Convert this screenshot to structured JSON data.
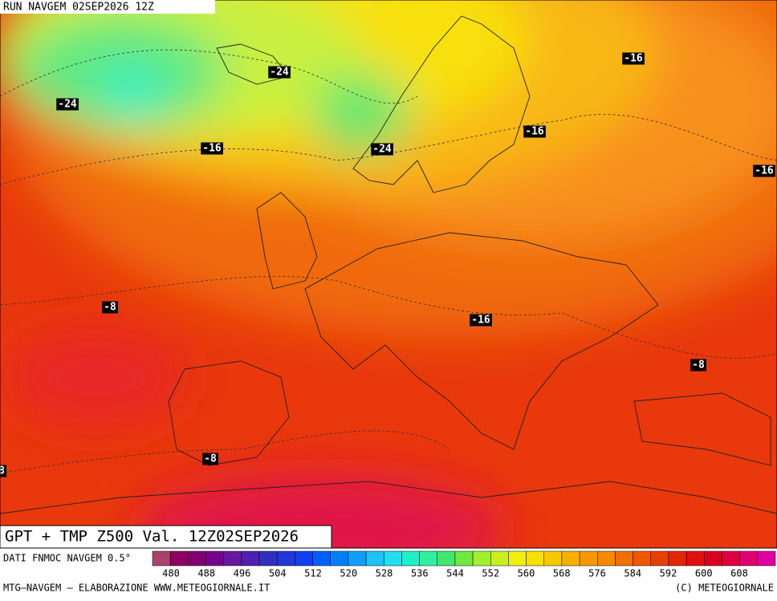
{
  "header": {
    "run": "RUN NAVGEM 02SEP2026 12Z"
  },
  "map": {
    "title": "GPT + TMP Z500 Val. 12Z02SEP2026",
    "contour_labels": [
      "-24",
      "-24",
      "-24",
      "-16",
      "-16",
      "-16",
      "-16",
      "-16",
      "-8",
      "-8",
      "-8",
      "8"
    ]
  },
  "legend": {
    "source": "DATI FNMOC NAVGEM 0.5°",
    "labels": [
      480,
      488,
      496,
      504,
      512,
      520,
      528,
      536,
      544,
      552,
      560,
      568,
      576,
      584,
      592,
      600,
      608
    ],
    "colors": [
      "#a8426e",
      "#900060",
      "#800070",
      "#780090",
      "#6818a0",
      "#5020b0",
      "#3030c0",
      "#2038d8",
      "#1040f0",
      "#0060f8",
      "#0080f8",
      "#10a0f8",
      "#20c0f8",
      "#20e0f0",
      "#20f0c8",
      "#30f0a0",
      "#40e870",
      "#70e840",
      "#a0f030",
      "#c8f020",
      "#f0f010",
      "#f8e000",
      "#f8c800",
      "#f8b000",
      "#f89800",
      "#f88800",
      "#f07000",
      "#f05800",
      "#e84000",
      "#e02800",
      "#e01010",
      "#d80020",
      "#e00040",
      "#e00070",
      "#e000a0"
    ]
  },
  "footer": {
    "left": "MTG–NAVGEM – ELABORAZIONE WWW.METEOGIORNALE.IT",
    "right": "(C) METEOGIORNALE"
  }
}
